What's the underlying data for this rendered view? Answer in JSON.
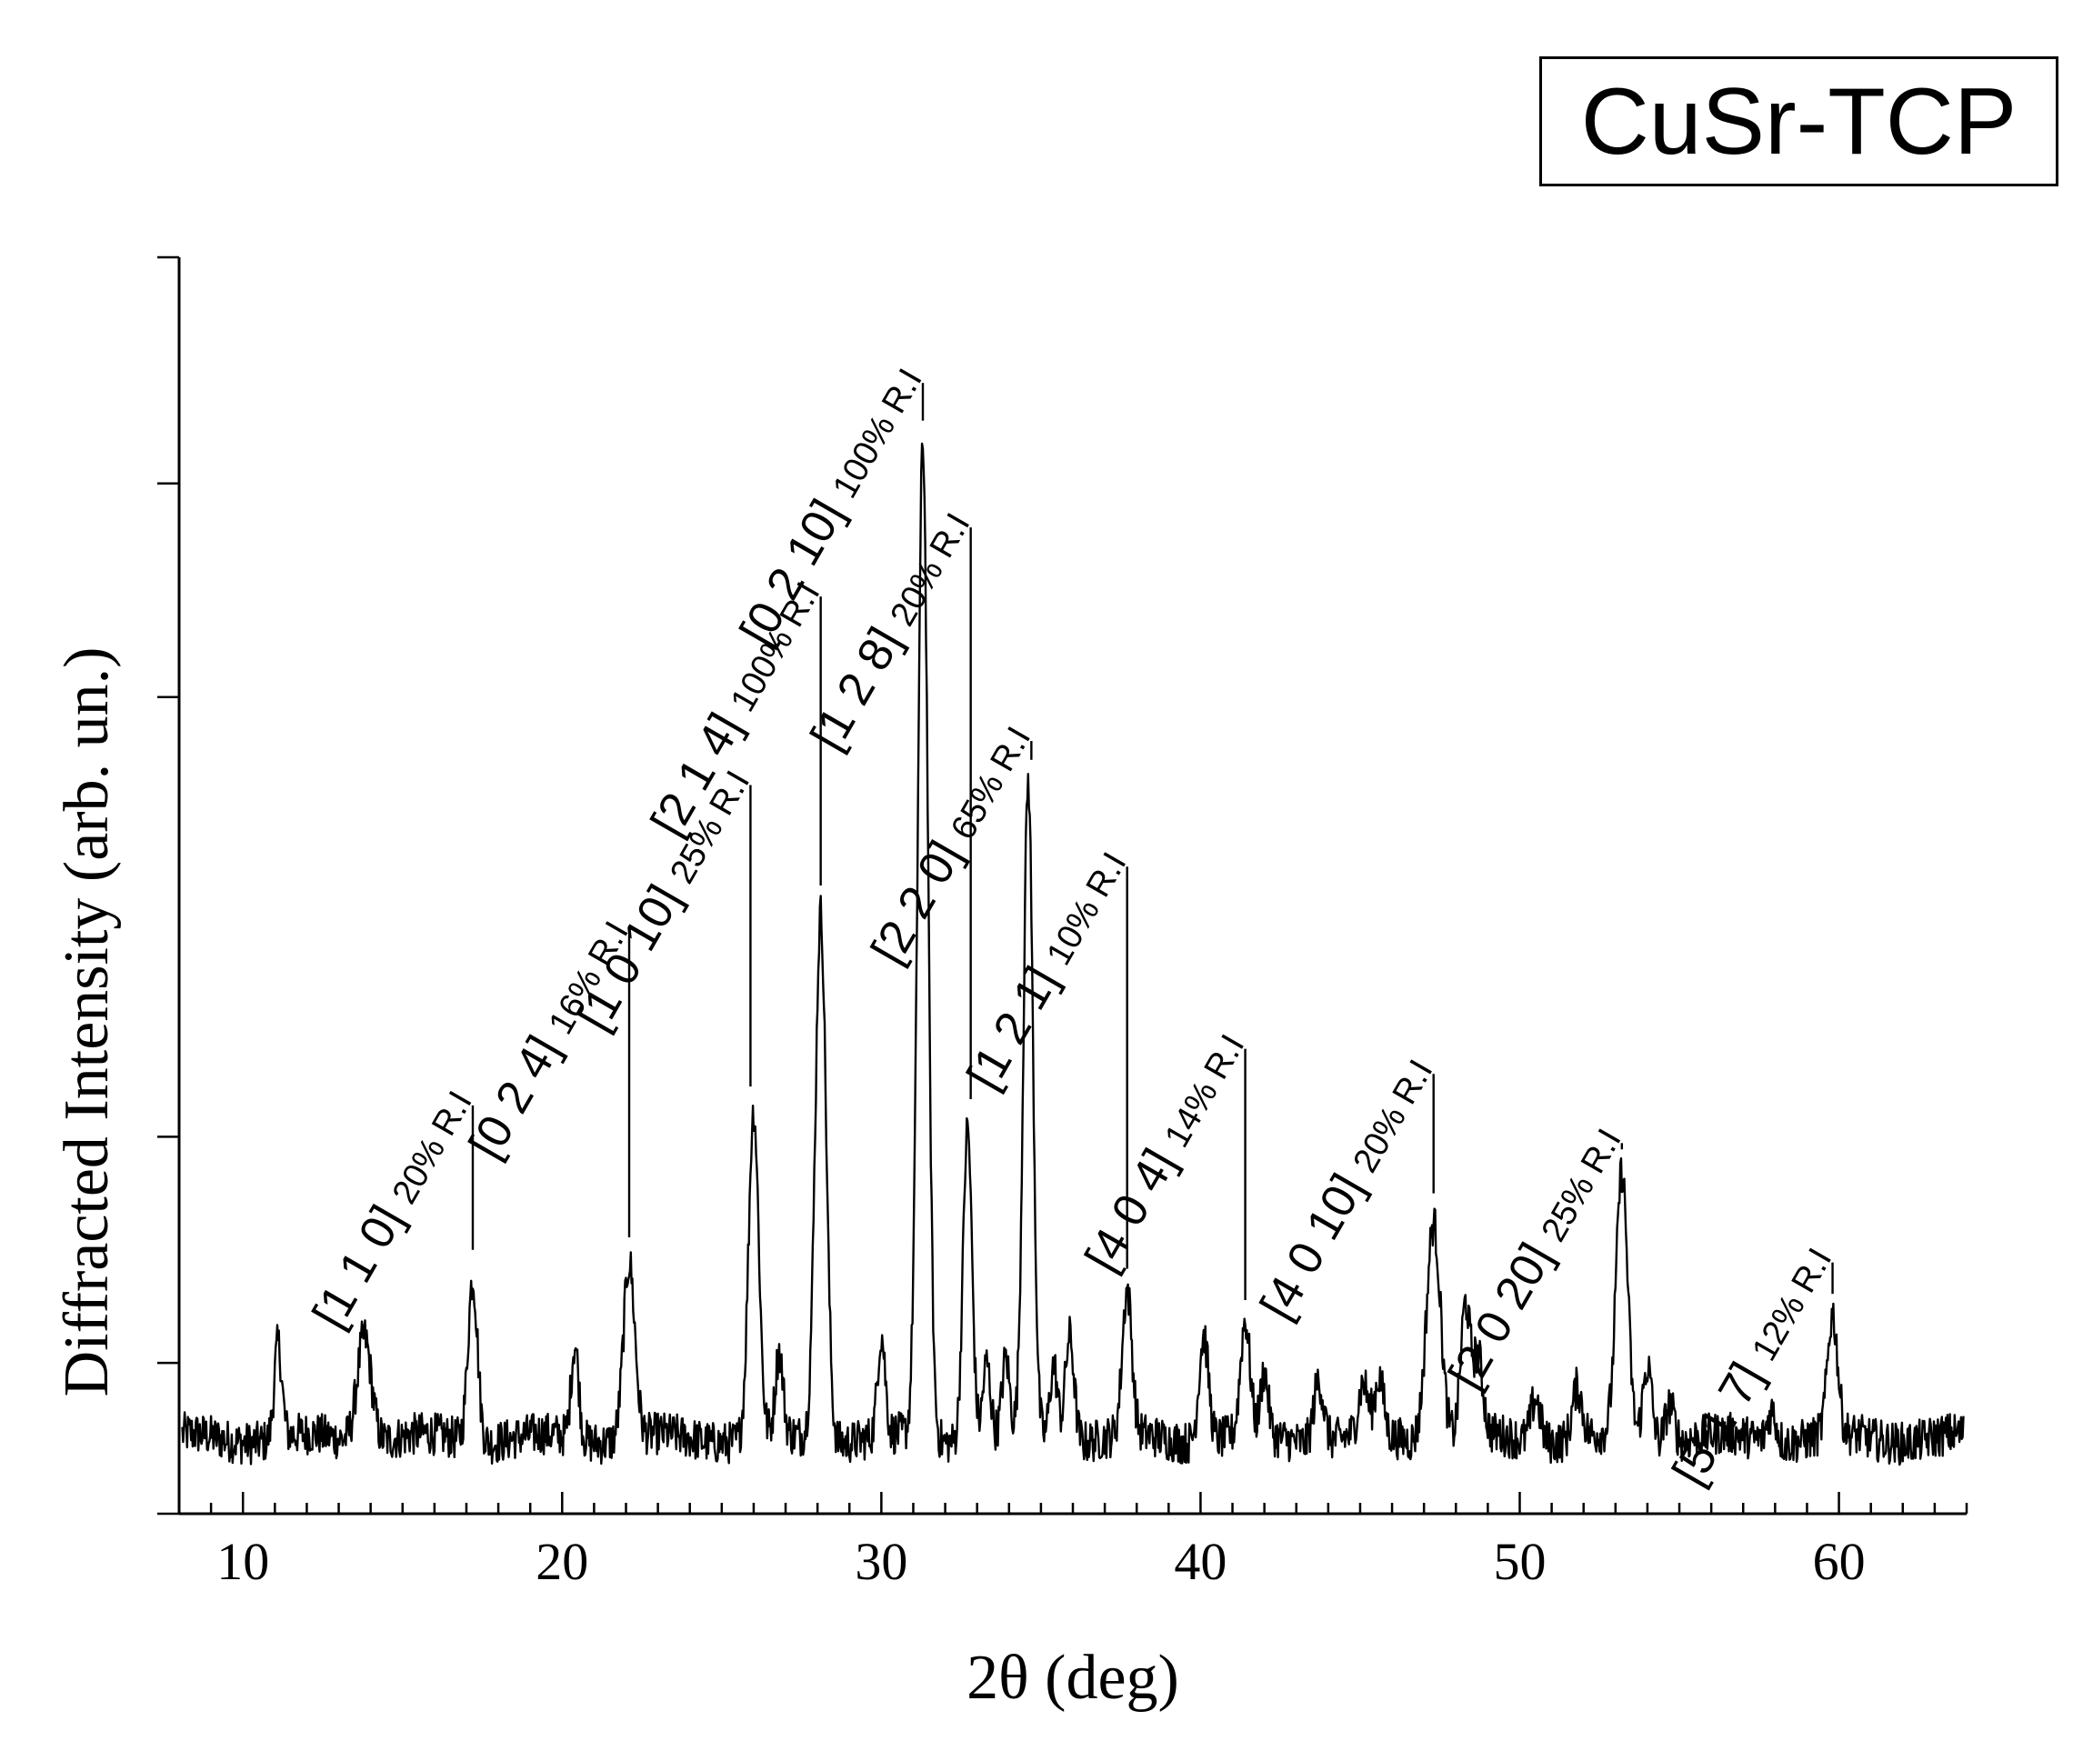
{
  "chart_data": {
    "type": "line",
    "title": "CuSr-TCP",
    "xlabel": "2θ (deg)",
    "ylabel": "Diffracted Intensity (arb. un.)",
    "xlim": [
      8,
      64
    ],
    "ylim": [
      0,
      100
    ],
    "xticks": [
      10,
      20,
      30,
      40,
      50,
      60
    ],
    "grid": false,
    "legend": "top-right",
    "line_color": "#000000",
    "baseline": 6,
    "peaks": [
      {
        "x": 11.1,
        "y": 7.5,
        "w": 0.12
      },
      {
        "x": 13.8,
        "y": 8.5,
        "w": 0.22
      },
      {
        "x": 17.2,
        "y": 13.0,
        "w": 0.15
      },
      {
        "x": 20.4,
        "y": 7.5,
        "w": 0.12
      },
      {
        "x": 22.1,
        "y": 14.0,
        "w": 0.18
      },
      {
        "x": 26.0,
        "y": 26.0,
        "w": 0.16
      },
      {
        "x": 26.8,
        "y": 6.5,
        "w": 0.12
      },
      {
        "x": 28.1,
        "y": 42.0,
        "w": 0.17
      },
      {
        "x": 30.0,
        "y": 8.0,
        "w": 0.12
      },
      {
        "x": 31.3,
        "y": 79.0,
        "w": 0.16
      },
      {
        "x": 32.7,
        "y": 25.0,
        "w": 0.14
      },
      {
        "x": 33.3,
        "y": 6.0,
        "w": 0.12
      },
      {
        "x": 33.9,
        "y": 6.0,
        "w": 0.12
      },
      {
        "x": 34.6,
        "y": 52.0,
        "w": 0.15
      },
      {
        "x": 35.4,
        "y": 6.0,
        "w": 0.12
      },
      {
        "x": 35.9,
        "y": 8.5,
        "w": 0.14
      },
      {
        "x": 37.7,
        "y": 11.5,
        "w": 0.15
      },
      {
        "x": 40.1,
        "y": 8.5,
        "w": 0.15
      },
      {
        "x": 41.4,
        "y": 9.0,
        "w": 0.15
      },
      {
        "x": 42.0,
        "y": 5.0,
        "w": 0.12
      },
      {
        "x": 43.7,
        "y": 5.0,
        "w": 0.15
      },
      {
        "x": 45.1,
        "y": 4.0,
        "w": 0.15
      },
      {
        "x": 45.6,
        "y": 4.5,
        "w": 0.14
      },
      {
        "x": 47.3,
        "y": 17.5,
        "w": 0.22
      },
      {
        "x": 48.3,
        "y": 10.5,
        "w": 0.15
      },
      {
        "x": 48.7,
        "y": 6.0,
        "w": 0.15
      },
      {
        "x": 50.5,
        "y": 3.5,
        "w": 0.15
      },
      {
        "x": 51.8,
        "y": 4.0,
        "w": 0.15
      },
      {
        "x": 53.2,
        "y": 21.0,
        "w": 0.18
      },
      {
        "x": 54.0,
        "y": 6.0,
        "w": 0.14
      },
      {
        "x": 54.7,
        "y": 3.0,
        "w": 0.14
      },
      {
        "x": 57.9,
        "y": 2.5,
        "w": 0.14
      },
      {
        "x": 59.8,
        "y": 9.5,
        "w": 0.16
      }
    ],
    "annotations": [
      {
        "x": 17.2,
        "y": 32.5,
        "label": "[1 1 0]",
        "ri": "20% R.I"
      },
      {
        "x": 22.1,
        "y": 46.0,
        "label": "[0 2 4]",
        "ri": "16% R.I"
      },
      {
        "x": 25.9,
        "y": 58.0,
        "label": "[1 0 10]",
        "ri": "25% R.I"
      },
      {
        "x": 28.1,
        "y": 73.0,
        "label": "[2 1 4]",
        "ri": "100% R.I"
      },
      {
        "x": 31.3,
        "y": 90.0,
        "label": "[0 2 10]",
        "ri": "100% R.I"
      },
      {
        "x": 32.8,
        "y": 78.5,
        "label": "[1 2 8]",
        "ri": "20% R.I"
      },
      {
        "x": 34.7,
        "y": 61.5,
        "label": "[2 2 0]",
        "ri": "65% R.I"
      },
      {
        "x": 37.7,
        "y": 51.5,
        "label": "[1 2 1]",
        "ri": "10% R.I"
      },
      {
        "x": 41.4,
        "y": 37.0,
        "label": "[4 0 4]",
        "ri": "14% R.I"
      },
      {
        "x": 47.3,
        "y": 35.0,
        "label": "[4 0 10]",
        "ri": "20% R.I"
      },
      {
        "x": 53.2,
        "y": 29.5,
        "label": "[2 0 20]",
        "ri": "25% R.I"
      },
      {
        "x": 59.8,
        "y": 20.0,
        "label": "[5 1 7]",
        "ri": "12% R.I"
      }
    ]
  }
}
